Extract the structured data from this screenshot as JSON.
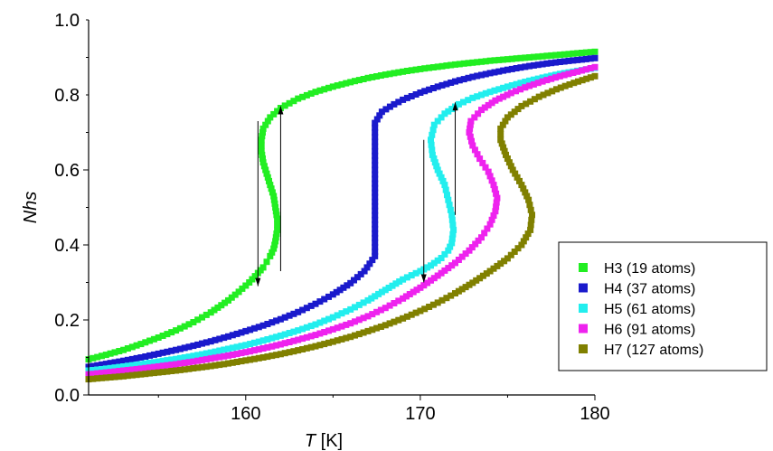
{
  "chart_data": {
    "type": "scatter",
    "title": "",
    "xlabel": {
      "symbol": "T",
      "unit": " [K]"
    },
    "ylabel": "Nhs",
    "xlim": [
      151,
      180
    ],
    "ylim": [
      0.0,
      1.0
    ],
    "x_ticks": [
      {
        "value": 160,
        "label": "160"
      },
      {
        "value": 170,
        "label": "170"
      },
      {
        "value": 180,
        "label": "180"
      }
    ],
    "y_ticks": [
      {
        "value": 0.0,
        "label": "0.0"
      },
      {
        "value": 0.2,
        "label": "0.2"
      },
      {
        "value": 0.4,
        "label": "0.4"
      },
      {
        "value": 0.6,
        "label": "0.6"
      },
      {
        "value": 0.8,
        "label": "0.8"
      },
      {
        "value": 1.0,
        "label": "1.0"
      }
    ],
    "grid": false,
    "legend_position": "bottom-right",
    "series": [
      {
        "name": "H3 (19 atoms)",
        "color": "#22ee22",
        "points": [
          [
            151.0,
            0.095
          ],
          [
            152.0,
            0.107
          ],
          [
            153.0,
            0.12
          ],
          [
            154.0,
            0.136
          ],
          [
            155.0,
            0.153
          ],
          [
            156.0,
            0.172
          ],
          [
            157.0,
            0.194
          ],
          [
            158.0,
            0.22
          ],
          [
            159.0,
            0.252
          ],
          [
            159.6,
            0.275
          ],
          [
            160.2,
            0.3
          ],
          [
            160.7,
            0.325
          ],
          [
            161.0,
            0.34
          ],
          [
            161.2,
            0.355
          ],
          [
            161.4,
            0.37
          ],
          [
            161.6,
            0.39
          ],
          [
            161.7,
            0.41
          ],
          [
            161.8,
            0.44
          ],
          [
            161.8,
            0.47
          ],
          [
            161.7,
            0.5
          ],
          [
            161.6,
            0.53
          ],
          [
            161.4,
            0.56
          ],
          [
            161.2,
            0.59
          ],
          [
            161.0,
            0.62
          ],
          [
            160.9,
            0.65
          ],
          [
            160.9,
            0.68
          ],
          [
            161.0,
            0.71
          ],
          [
            161.4,
            0.74
          ],
          [
            162.0,
            0.765
          ],
          [
            163.0,
            0.79
          ],
          [
            164.0,
            0.808
          ],
          [
            165.0,
            0.822
          ],
          [
            166.0,
            0.834
          ],
          [
            167.0,
            0.845
          ],
          [
            168.0,
            0.854
          ],
          [
            169.0,
            0.862
          ],
          [
            170.0,
            0.869
          ],
          [
            171.0,
            0.875
          ],
          [
            172.0,
            0.881
          ],
          [
            173.0,
            0.886
          ],
          [
            174.0,
            0.891
          ],
          [
            175.0,
            0.895
          ],
          [
            176.0,
            0.899
          ],
          [
            177.0,
            0.903
          ],
          [
            178.0,
            0.907
          ],
          [
            179.0,
            0.911
          ],
          [
            180.0,
            0.915
          ]
        ]
      },
      {
        "name": "H4 (37 atoms)",
        "color": "#1a1acc",
        "points": [
          [
            151.0,
            0.075
          ],
          [
            152.0,
            0.083
          ],
          [
            153.0,
            0.091
          ],
          [
            154.0,
            0.1
          ],
          [
            155.0,
            0.11
          ],
          [
            156.0,
            0.12
          ],
          [
            157.0,
            0.131
          ],
          [
            158.0,
            0.143
          ],
          [
            159.0,
            0.156
          ],
          [
            160.0,
            0.17
          ],
          [
            161.0,
            0.185
          ],
          [
            162.0,
            0.202
          ],
          [
            163.0,
            0.221
          ],
          [
            164.0,
            0.243
          ],
          [
            165.0,
            0.268
          ],
          [
            166.0,
            0.298
          ],
          [
            166.8,
            0.33
          ],
          [
            167.4,
            0.37
          ],
          [
            167.4,
            0.6
          ],
          [
            167.4,
            0.725
          ],
          [
            167.8,
            0.755
          ],
          [
            168.5,
            0.775
          ],
          [
            169.0,
            0.787
          ],
          [
            170.0,
            0.806
          ],
          [
            171.0,
            0.822
          ],
          [
            172.0,
            0.836
          ],
          [
            173.0,
            0.848
          ],
          [
            174.0,
            0.858
          ],
          [
            175.0,
            0.867
          ],
          [
            176.0,
            0.875
          ],
          [
            177.0,
            0.882
          ],
          [
            178.0,
            0.888
          ],
          [
            179.0,
            0.893
          ],
          [
            180.0,
            0.898
          ]
        ]
      },
      {
        "name": "H5 (61 atoms)",
        "color": "#22eeee",
        "points": [
          [
            151.0,
            0.065
          ],
          [
            152.0,
            0.07
          ],
          [
            153.0,
            0.076
          ],
          [
            154.0,
            0.082
          ],
          [
            155.0,
            0.089
          ],
          [
            156.0,
            0.096
          ],
          [
            157.0,
            0.104
          ],
          [
            158.0,
            0.113
          ],
          [
            159.0,
            0.123
          ],
          [
            160.0,
            0.133
          ],
          [
            161.0,
            0.145
          ],
          [
            162.0,
            0.158
          ],
          [
            163.0,
            0.172
          ],
          [
            164.0,
            0.188
          ],
          [
            165.0,
            0.207
          ],
          [
            166.0,
            0.228
          ],
          [
            167.0,
            0.252
          ],
          [
            168.0,
            0.28
          ],
          [
            169.0,
            0.308
          ],
          [
            170.0,
            0.33
          ],
          [
            170.6,
            0.345
          ],
          [
            171.2,
            0.365
          ],
          [
            171.6,
            0.385
          ],
          [
            171.8,
            0.405
          ],
          [
            171.9,
            0.44
          ],
          [
            171.8,
            0.48
          ],
          [
            171.6,
            0.52
          ],
          [
            171.4,
            0.56
          ],
          [
            171.0,
            0.6
          ],
          [
            170.7,
            0.64
          ],
          [
            170.6,
            0.68
          ],
          [
            170.8,
            0.72
          ],
          [
            171.4,
            0.75
          ],
          [
            172.2,
            0.775
          ],
          [
            173.0,
            0.792
          ],
          [
            174.0,
            0.808
          ],
          [
            175.0,
            0.822
          ],
          [
            176.0,
            0.835
          ],
          [
            177.0,
            0.846
          ],
          [
            178.0,
            0.856
          ],
          [
            179.0,
            0.864
          ],
          [
            180.0,
            0.872
          ]
        ]
      },
      {
        "name": "H6 (91 atoms)",
        "color": "#ee22ee",
        "points": [
          [
            151.0,
            0.055
          ],
          [
            152.0,
            0.06
          ],
          [
            153.0,
            0.065
          ],
          [
            154.0,
            0.07
          ],
          [
            155.0,
            0.076
          ],
          [
            156.0,
            0.082
          ],
          [
            157.0,
            0.089
          ],
          [
            158.0,
            0.097
          ],
          [
            159.0,
            0.105
          ],
          [
            160.0,
            0.114
          ],
          [
            161.0,
            0.124
          ],
          [
            162.0,
            0.135
          ],
          [
            163.0,
            0.147
          ],
          [
            164.0,
            0.16
          ],
          [
            165.0,
            0.175
          ],
          [
            166.0,
            0.191
          ],
          [
            167.0,
            0.21
          ],
          [
            168.0,
            0.232
          ],
          [
            169.0,
            0.257
          ],
          [
            170.0,
            0.286
          ],
          [
            171.0,
            0.318
          ],
          [
            172.0,
            0.352
          ],
          [
            172.8,
            0.385
          ],
          [
            173.5,
            0.42
          ],
          [
            174.0,
            0.455
          ],
          [
            174.3,
            0.49
          ],
          [
            174.4,
            0.525
          ],
          [
            174.2,
            0.56
          ],
          [
            173.9,
            0.595
          ],
          [
            173.4,
            0.63
          ],
          [
            173.0,
            0.665
          ],
          [
            172.8,
            0.7
          ],
          [
            172.9,
            0.73
          ],
          [
            173.5,
            0.76
          ],
          [
            174.3,
            0.785
          ],
          [
            175.2,
            0.805
          ],
          [
            176.0,
            0.82
          ],
          [
            177.0,
            0.836
          ],
          [
            178.0,
            0.85
          ],
          [
            179.0,
            0.862
          ],
          [
            180.0,
            0.874
          ]
        ]
      },
      {
        "name": "H7 (127 atoms)",
        "color": "#808000",
        "points": [
          [
            151.0,
            0.042
          ],
          [
            152.0,
            0.046
          ],
          [
            153.0,
            0.05
          ],
          [
            154.0,
            0.055
          ],
          [
            155.0,
            0.06
          ],
          [
            156.0,
            0.065
          ],
          [
            157.0,
            0.071
          ],
          [
            158.0,
            0.077
          ],
          [
            159.0,
            0.084
          ],
          [
            160.0,
            0.092
          ],
          [
            161.0,
            0.1
          ],
          [
            162.0,
            0.109
          ],
          [
            163.0,
            0.119
          ],
          [
            164.0,
            0.13
          ],
          [
            165.0,
            0.142
          ],
          [
            166.0,
            0.155
          ],
          [
            167.0,
            0.17
          ],
          [
            168.0,
            0.186
          ],
          [
            169.0,
            0.204
          ],
          [
            170.0,
            0.224
          ],
          [
            171.0,
            0.246
          ],
          [
            172.0,
            0.271
          ],
          [
            173.0,
            0.299
          ],
          [
            174.0,
            0.33
          ],
          [
            175.0,
            0.364
          ],
          [
            175.8,
            0.4
          ],
          [
            176.3,
            0.44
          ],
          [
            176.4,
            0.48
          ],
          [
            176.2,
            0.52
          ],
          [
            175.8,
            0.56
          ],
          [
            175.3,
            0.6
          ],
          [
            174.9,
            0.64
          ],
          [
            174.6,
            0.68
          ],
          [
            174.6,
            0.71
          ],
          [
            175.0,
            0.74
          ],
          [
            175.8,
            0.77
          ],
          [
            176.8,
            0.795
          ],
          [
            177.8,
            0.815
          ],
          [
            178.8,
            0.832
          ],
          [
            180.0,
            0.85
          ]
        ]
      }
    ],
    "annotations": [
      {
        "type": "arrow",
        "from": [
          160.7,
          0.73
        ],
        "to": [
          160.7,
          0.29
        ]
      },
      {
        "type": "arrow",
        "from": [
          162.0,
          0.33
        ],
        "to": [
          162.0,
          0.77
        ]
      },
      {
        "type": "arrow",
        "from": [
          170.2,
          0.68
        ],
        "to": [
          170.2,
          0.3
        ]
      },
      {
        "type": "arrow",
        "from": [
          172.0,
          0.48
        ],
        "to": [
          172.0,
          0.78
        ]
      }
    ]
  }
}
